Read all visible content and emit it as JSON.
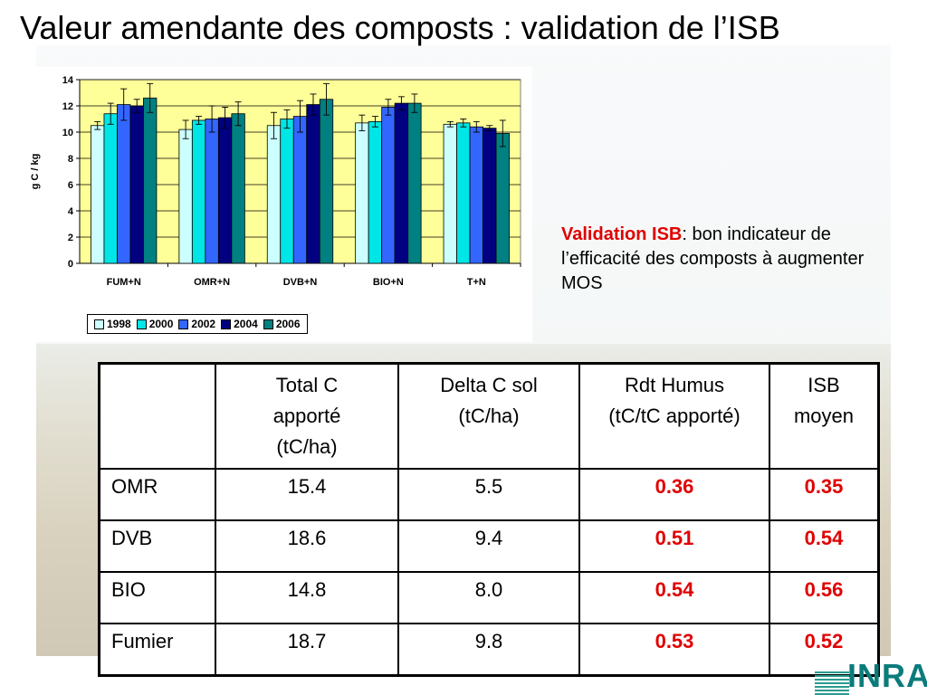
{
  "title": "Valeur amendante des composts : validation de l’ISB",
  "chart_data": {
    "type": "bar",
    "ylabel": "g C / kg",
    "xlabel": "",
    "ylim": [
      0,
      14
    ],
    "yticks": [
      0,
      2,
      4,
      6,
      8,
      10,
      12,
      14
    ],
    "grid": "horizontal",
    "legend_position": "bottom",
    "plot_background": "#ffff99",
    "categories": [
      "FUM+N",
      "OMR+N",
      "DVB+N",
      "BIO+N",
      "T+N"
    ],
    "series": [
      {
        "name": "1998",
        "color": "#ccffff",
        "values": [
          10.5,
          10.2,
          10.5,
          10.7,
          10.6
        ],
        "errors": [
          0.3,
          0.7,
          1.0,
          0.6,
          0.2
        ]
      },
      {
        "name": "2000",
        "color": "#00e5e5",
        "values": [
          11.4,
          10.9,
          11.0,
          10.8,
          10.7
        ],
        "errors": [
          0.8,
          0.3,
          0.7,
          0.4,
          0.3
        ]
      },
      {
        "name": "2002",
        "color": "#3366ff",
        "values": [
          12.1,
          11.0,
          11.2,
          11.9,
          10.4
        ],
        "errors": [
          1.2,
          1.0,
          1.2,
          0.6,
          0.4
        ]
      },
      {
        "name": "2004",
        "color": "#000080",
        "values": [
          12.0,
          11.1,
          12.1,
          12.2,
          10.3
        ],
        "errors": [
          0.5,
          0.8,
          0.8,
          0.5,
          0.2
        ]
      },
      {
        "name": "2006",
        "color": "#008080",
        "values": [
          12.6,
          11.4,
          12.5,
          12.2,
          9.9
        ],
        "errors": [
          1.1,
          0.9,
          1.2,
          0.7,
          1.0
        ]
      }
    ]
  },
  "validation": {
    "highlight": "Validation ISB",
    "text": ": bon indicateur de l’efficacité des composts à augmenter  MOS"
  },
  "table": {
    "headers": [
      [
        ""
      ],
      [
        "Total C",
        "apporté",
        "(tC/ha)"
      ],
      [
        "Delta C sol",
        "(tC/ha)"
      ],
      [
        "Rdt Humus",
        "(tC/tC apporté)"
      ],
      [
        "ISB",
        "moyen"
      ]
    ],
    "rows": [
      {
        "label": "OMR",
        "total_c": "15.4",
        "delta_c": "5.5",
        "rdt_humus": "0.36",
        "isb": "0.35"
      },
      {
        "label": "DVB",
        "total_c": "18.6",
        "delta_c": "9.4",
        "rdt_humus": "0.51",
        "isb": "0.54"
      },
      {
        "label": "BIO",
        "total_c": "14.8",
        "delta_c": "8.0",
        "rdt_humus": "0.54",
        "isb": "0.56"
      },
      {
        "label": "Fumier",
        "total_c": "18.7",
        "delta_c": "9.8",
        "rdt_humus": "0.53",
        "isb": "0.52"
      }
    ]
  },
  "logo": {
    "text": "INRA",
    "color": "#0b7b7b"
  }
}
